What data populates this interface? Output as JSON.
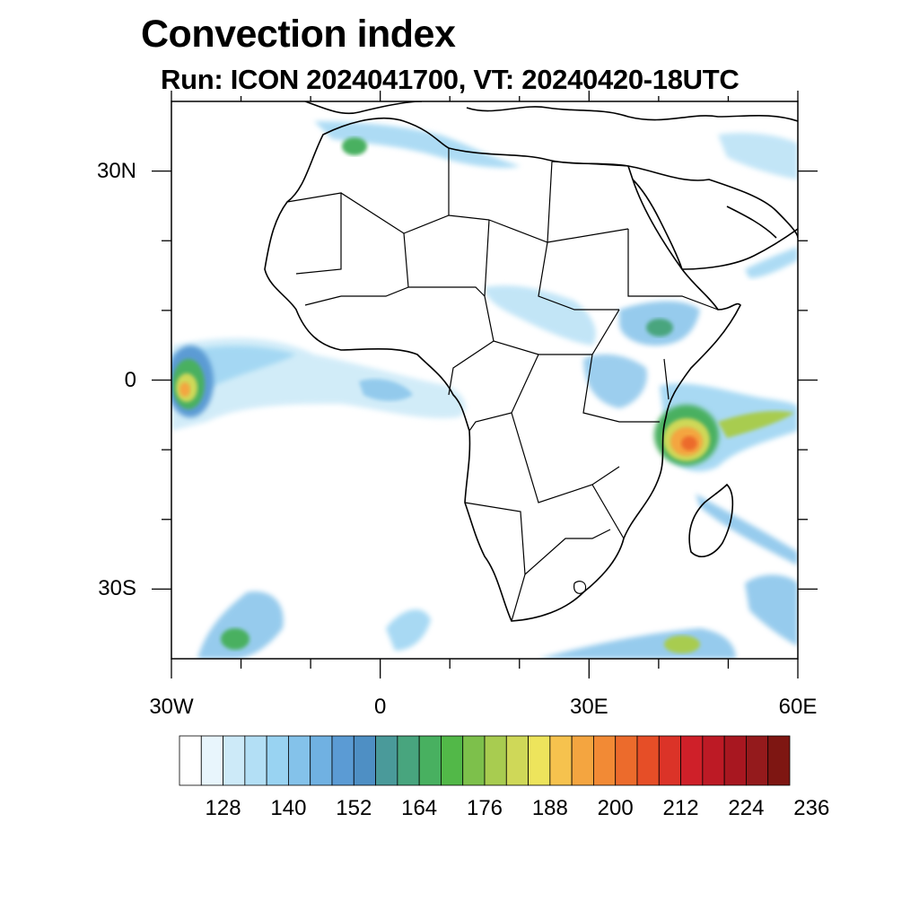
{
  "title": "Convection index",
  "subtitle": "Run: ICON 2024041700,  VT: 20240420-18UTC",
  "map": {
    "region": "Africa",
    "lon_range": [
      -30,
      60
    ],
    "lat_range": [
      -40,
      40
    ],
    "lon_labels": [
      {
        "lon": -30,
        "text": "30W"
      },
      {
        "lon": 0,
        "text": "0"
      },
      {
        "lon": 30,
        "text": "30E"
      },
      {
        "lon": 60,
        "text": "60E"
      }
    ],
    "lat_labels": [
      {
        "lat": 30,
        "text": "30N"
      },
      {
        "lat": 0,
        "text": "0"
      },
      {
        "lat": -30,
        "text": "30S"
      }
    ],
    "minor_lon_ticks": [
      -20,
      -10,
      10,
      20,
      40,
      50
    ],
    "minor_lat_ticks": [
      20,
      10,
      -10,
      -20
    ]
  },
  "colorbar": {
    "colors": [
      "#ffffff",
      "#e8f5fc",
      "#cdeaf8",
      "#b3dff5",
      "#99d3f2",
      "#84c2ea",
      "#70b1e2",
      "#5b9bd4",
      "#4e8fc4",
      "#4a9a9a",
      "#48a57e",
      "#48b060",
      "#52b848",
      "#7dc04b",
      "#a8cc50",
      "#cfd858",
      "#ede45c",
      "#f6c24e",
      "#f4a540",
      "#f28a35",
      "#ec6b2c",
      "#e64e27",
      "#db3328",
      "#cf2029",
      "#bd1a25",
      "#a81720",
      "#941a1c",
      "#7e1612"
    ],
    "labels": [
      "128",
      "140",
      "152",
      "164",
      "176",
      "188",
      "200",
      "212",
      "224",
      "236"
    ],
    "label_start_index": 2,
    "label_step": 3
  },
  "convection_areas": [
    {
      "name": "Gulf of Guinea / Atlantic band",
      "level": "low"
    },
    {
      "name": "Western Atlantic cluster",
      "level": "high"
    },
    {
      "name": "East Africa / Tanzania coast",
      "level": "high"
    },
    {
      "name": "Ethiopian highlands",
      "level": "medium"
    },
    {
      "name": "Southern Atlantic",
      "level": "medium"
    },
    {
      "name": "Mozambique Channel band",
      "level": "medium"
    },
    {
      "name": "Mediterranean band",
      "level": "low"
    }
  ]
}
